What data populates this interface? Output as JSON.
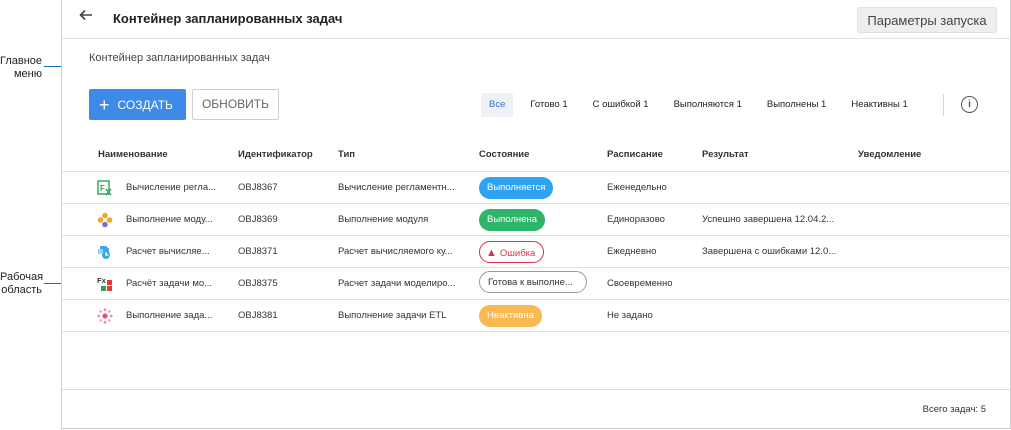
{
  "callouts": {
    "main_menu": "Главное\nменю",
    "work_area": "Рабочая\nобласть"
  },
  "header": {
    "title": "Контейнер запланированных задач",
    "params_button": "Параметры запуска"
  },
  "breadcrumb": "Контейнер запланированных задач",
  "toolbar": {
    "create_label": "СОЗДАТЬ",
    "refresh_label": "ОБНОВИТЬ"
  },
  "filters": [
    {
      "label": "Все",
      "active": true
    },
    {
      "label": "Готово 1"
    },
    {
      "label": "С ошибкой 1"
    },
    {
      "label": "Выполняются 1"
    },
    {
      "label": "Выполнены 1"
    },
    {
      "label": "Неактивны 1"
    }
  ],
  "table": {
    "columns": [
      "Наименование",
      "Идентификатор",
      "Тип",
      "Состояние",
      "Расписание",
      "Результат",
      "Уведомление"
    ],
    "rows": [
      {
        "icon": "reglament-report-icon",
        "name": "Вычисление регла...",
        "id": "OBJ8367",
        "type": "Вычисление регламентн...",
        "status": "Выполняется",
        "status_kind": "running",
        "schedule": "Еженедельно",
        "result": "",
        "notification": ""
      },
      {
        "icon": "module-icon",
        "name": "Выполнение моду...",
        "id": "OBJ8369",
        "type": "Выполнение модуля",
        "status": "Выполнена",
        "status_kind": "done",
        "schedule": "Единоразово",
        "result": "Успешно завершена 12.04.2...",
        "notification": ""
      },
      {
        "icon": "calculated-cube-icon",
        "name": "Расчет вычисляе...",
        "id": "OBJ8371",
        "type": "Расчет вычисляемого ку...",
        "status": "Ошибка",
        "status_kind": "error",
        "schedule": "Ежедневно",
        "result": "Завершена с ошибками 12.0...",
        "notification": ""
      },
      {
        "icon": "model-calc-icon",
        "name": "Расчёт задачи мо...",
        "id": "OBJ8375",
        "type": "Расчет задачи моделиро...",
        "status": "Готова к выполне...",
        "status_kind": "ready",
        "schedule": "Своевременно",
        "result": "",
        "notification": ""
      },
      {
        "icon": "etl-task-icon",
        "name": "Выполнение зада...",
        "id": "OBJ8381",
        "type": "Выполнение задачи ETL",
        "status": "Неактивна",
        "status_kind": "inactive",
        "schedule": "Не задано",
        "result": "",
        "notification": ""
      }
    ]
  },
  "footer": {
    "total": "Всего задач: 5"
  },
  "colors": {
    "accent": "#3d8ae8",
    "running": "#2ea3f2",
    "done": "#2fb56a",
    "error": "#d9324b",
    "inactive": "#f7b950",
    "callout": "#1c6fb3"
  }
}
